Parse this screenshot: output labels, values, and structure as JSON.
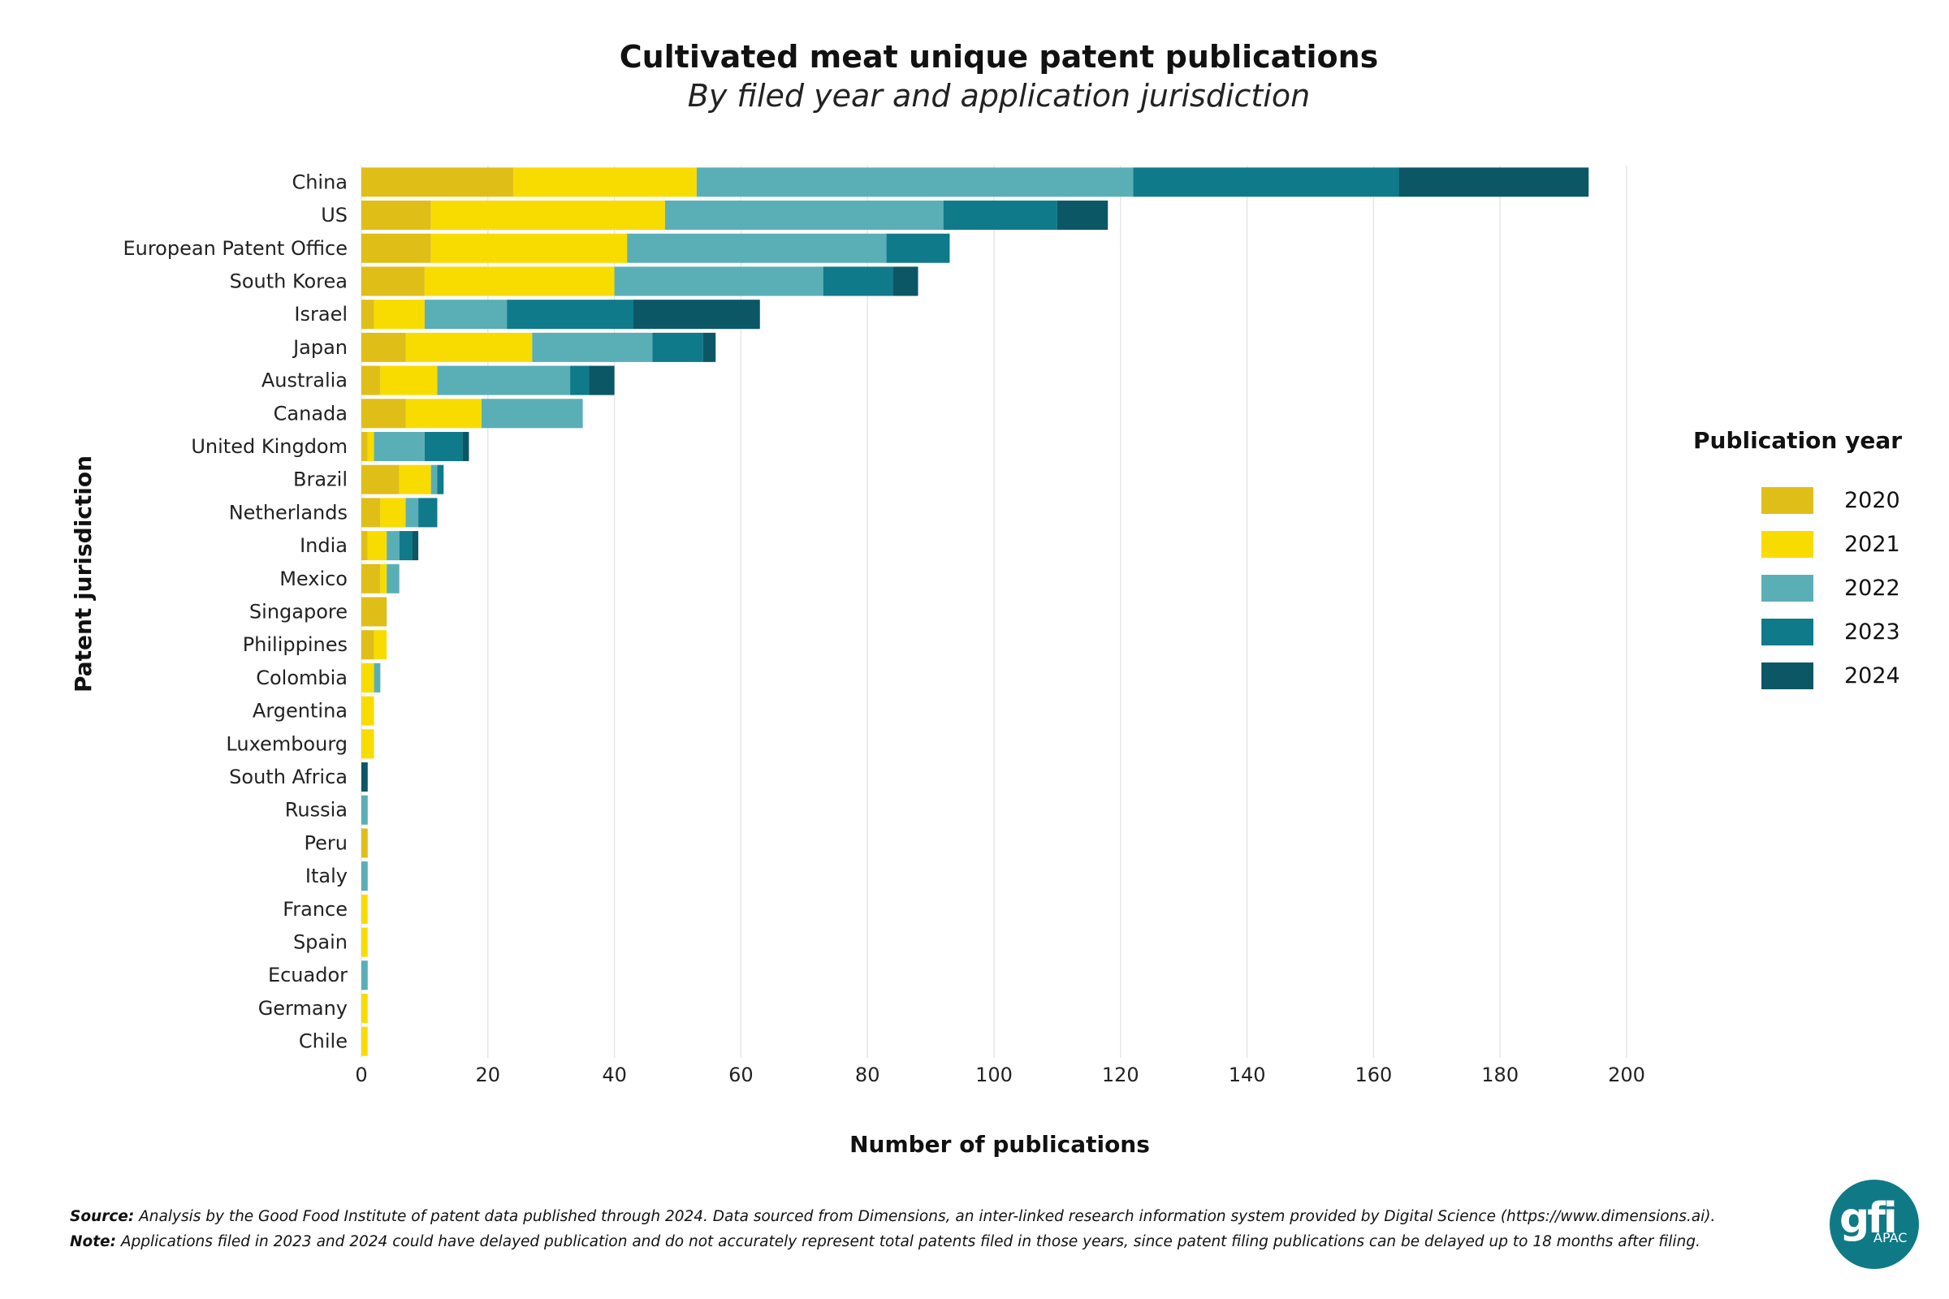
{
  "chart_data": {
    "type": "bar",
    "orientation": "horizontal",
    "stacked": true,
    "title": "Cultivated meat unique patent publications",
    "subtitle": "By filed year and application jurisdiction",
    "xlabel": "Number of publications",
    "ylabel": "Patent jurisdiction",
    "xlim": [
      0,
      200
    ],
    "xticks": [
      0,
      20,
      40,
      60,
      80,
      100,
      120,
      140,
      160,
      180,
      200
    ],
    "grid": "vertical",
    "legend_title": "Publication year",
    "legend_position": "right",
    "categories": [
      "China",
      "US",
      "European Patent Office",
      "South Korea",
      "Israel",
      "Japan",
      "Australia",
      "Canada",
      "United Kingdom",
      "Brazil",
      "Netherlands",
      "India",
      "Mexico",
      "Singapore",
      "Philippines",
      "Colombia",
      "Argentina",
      "Luxembourg",
      "South Africa",
      "Russia",
      "Peru",
      "Italy",
      "France",
      "Spain",
      "Ecuador",
      "Germany",
      "Chile"
    ],
    "series": [
      {
        "name": "2020",
        "color": "#e0be18",
        "values": [
          24,
          11,
          11,
          10,
          2,
          7,
          3,
          7,
          1,
          6,
          3,
          1,
          3,
          4,
          2,
          0,
          0,
          0,
          0,
          0,
          1,
          0,
          0,
          0,
          0,
          0,
          0
        ]
      },
      {
        "name": "2021",
        "color": "#f8dc00",
        "values": [
          29,
          37,
          31,
          30,
          8,
          20,
          9,
          12,
          1,
          5,
          4,
          3,
          1,
          0,
          2,
          2,
          2,
          2,
          0,
          0,
          0,
          0,
          1,
          1,
          0,
          1,
          1
        ]
      },
      {
        "name": "2022",
        "color": "#5aafb7",
        "values": [
          69,
          44,
          41,
          33,
          13,
          19,
          21,
          16,
          8,
          1,
          2,
          2,
          2,
          0,
          0,
          1,
          0,
          0,
          0,
          1,
          0,
          1,
          0,
          0,
          1,
          0,
          0
        ]
      },
      {
        "name": "2023",
        "color": "#0f7a8a",
        "values": [
          42,
          18,
          10,
          11,
          20,
          8,
          3,
          0,
          6,
          1,
          3,
          2,
          0,
          0,
          0,
          0,
          0,
          0,
          0,
          0,
          0,
          0,
          0,
          0,
          0,
          0,
          0
        ]
      },
      {
        "name": "2024",
        "color": "#0b5766",
        "values": [
          30,
          8,
          0,
          4,
          20,
          2,
          4,
          0,
          1,
          0,
          0,
          1,
          0,
          0,
          0,
          0,
          0,
          0,
          1,
          0,
          0,
          0,
          0,
          0,
          0,
          0,
          0
        ]
      }
    ]
  },
  "footnotes": {
    "source_label": "Source:",
    "source_text": "Analysis by the Good Food Institute of patent data published through 2024. Data sourced from Dimensions, an inter-linked research information system provided by Digital Science (https://www.dimensions.ai).",
    "note_label": "Note:",
    "note_text": "Applications filed in 2023 and 2024 could have delayed publication and do not accurately represent total patents filed in those years, since patent filing publications can be delayed up to 18 months after filing."
  },
  "logo": {
    "main": "gfi",
    "sub": "APAC",
    "color": "#0f7a85"
  }
}
